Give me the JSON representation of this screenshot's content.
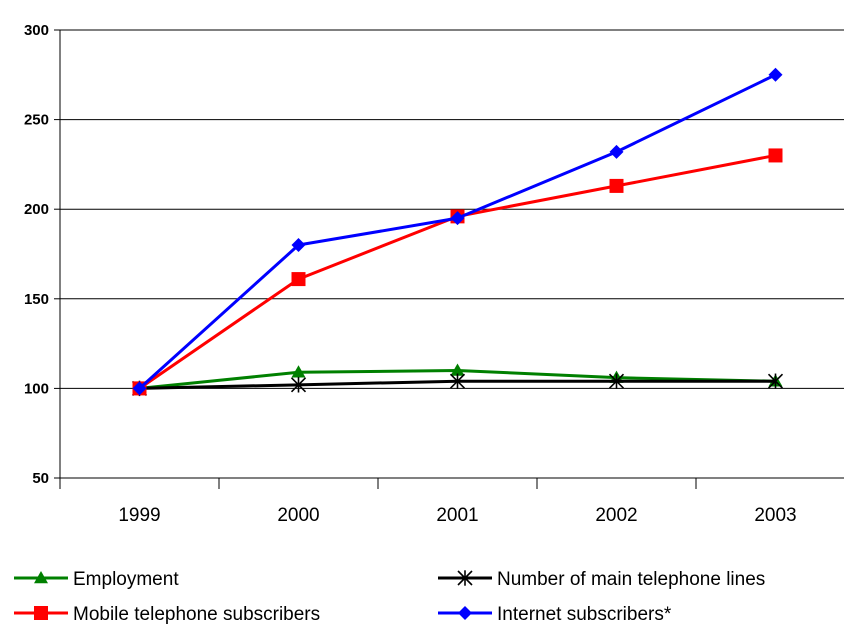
{
  "chart_data": {
    "type": "line",
    "categories": [
      "1999",
      "2000",
      "2001",
      "2002",
      "2003"
    ],
    "ylim": [
      50,
      300
    ],
    "yticks": [
      50,
      100,
      150,
      200,
      250,
      300
    ],
    "grid": "horizontal",
    "legend_placement": "bottom",
    "series": [
      {
        "name": "Employment",
        "color": "#008000",
        "marker": "triangle",
        "values": [
          100,
          109,
          110,
          106,
          104
        ]
      },
      {
        "name": "Number of main telephone lines",
        "color": "#000000",
        "marker": "asterisk",
        "values": [
          100,
          102,
          104,
          104,
          104
        ]
      },
      {
        "name": "Mobile telephone subscribers",
        "color": "#ff0000",
        "marker": "square",
        "values": [
          100,
          161,
          196,
          213,
          230
        ]
      },
      {
        "name": "Internet subscribers*",
        "color": "#0000ff",
        "marker": "diamond",
        "values": [
          100,
          180,
          195,
          232,
          275
        ]
      }
    ]
  }
}
